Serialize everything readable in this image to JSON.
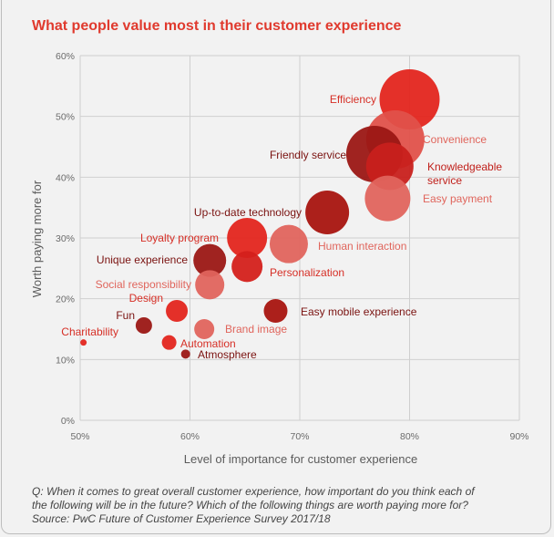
{
  "chart_data": {
    "type": "scatter",
    "title": "What people value most in their customer experience",
    "xlabel": "Level of importance for customer experience",
    "ylabel": "Worth paying more for",
    "xlim": [
      50,
      90
    ],
    "ylim": [
      0,
      60
    ],
    "x_ticks": [
      "50%",
      "60%",
      "70%",
      "80%",
      "90%"
    ],
    "y_ticks": [
      "0%",
      "10%",
      "20%",
      "30%",
      "40%",
      "50%",
      "60%"
    ],
    "grid": true,
    "points": [
      {
        "label": "Efficiency",
        "x": 80.0,
        "y": 52.8,
        "size": 33,
        "color": "#e3251e",
        "label_color": "#d62f26"
      },
      {
        "label": "Convenience",
        "x": 78.7,
        "y": 46.2,
        "size": 32,
        "color": "#e0514a",
        "label_color": "#e0655c"
      },
      {
        "label": "Friendly service",
        "x": 76.8,
        "y": 43.8,
        "size": 31,
        "color": "#9b1714",
        "label_color": "#7a1210"
      },
      {
        "label": "Knowledgeable service",
        "x": 78.2,
        "y": 41.8,
        "size": 26,
        "color": "#c8201c",
        "label_color": "#c0201b"
      },
      {
        "label": "Easy payment",
        "x": 78.0,
        "y": 36.5,
        "size": 25,
        "color": "#e0645d",
        "label_color": "#e0655c"
      },
      {
        "label": "Up-to-date technology",
        "x": 72.5,
        "y": 34.2,
        "size": 24,
        "color": "#a8140f",
        "label_color": "#7a1210"
      },
      {
        "label": "Human interaction",
        "x": 69.0,
        "y": 29.0,
        "size": 21,
        "color": "#e0645d",
        "label_color": "#e0655c"
      },
      {
        "label": "Loyalty program",
        "x": 65.2,
        "y": 30.0,
        "size": 22,
        "color": "#e3251e",
        "label_color": "#d62f26"
      },
      {
        "label": "Unique experience",
        "x": 61.8,
        "y": 26.3,
        "size": 18,
        "color": "#9b1714",
        "label_color": "#7a1210"
      },
      {
        "label": "Personalization",
        "x": 65.2,
        "y": 25.3,
        "size": 17,
        "color": "#d4201b",
        "label_color": "#d62f26"
      },
      {
        "label": "Social responsibility",
        "x": 61.8,
        "y": 22.3,
        "size": 16,
        "color": "#e0645d",
        "label_color": "#e0655c"
      },
      {
        "label": "Design",
        "x": 58.8,
        "y": 18.0,
        "size": 12,
        "color": "#e3251e",
        "label_color": "#d62f26"
      },
      {
        "label": "Easy mobile experience",
        "x": 67.8,
        "y": 18.0,
        "size": 13,
        "color": "#a8140f",
        "label_color": "#7a1210"
      },
      {
        "label": "Fun",
        "x": 55.8,
        "y": 15.6,
        "size": 9,
        "color": "#9b1714",
        "label_color": "#7a1210"
      },
      {
        "label": "Brand image",
        "x": 61.3,
        "y": 15.0,
        "size": 11,
        "color": "#e0645d",
        "label_color": "#e0655c"
      },
      {
        "label": "Charitability",
        "x": 50.3,
        "y": 12.8,
        "size": 3.5,
        "color": "#e3251e",
        "label_color": "#d62f26"
      },
      {
        "label": "Automation",
        "x": 58.1,
        "y": 12.8,
        "size": 8,
        "color": "#e3251e",
        "label_color": "#d62f26"
      },
      {
        "label": "Atmosphere",
        "x": 59.6,
        "y": 10.9,
        "size": 5,
        "color": "#9b1714",
        "label_color": "#7a1210"
      }
    ]
  },
  "footnote": {
    "line1": "Q: When it comes to great overall customer experience, how important do you think each of",
    "line2": "the following will be in the future? Which of the following things are worth paying more for?",
    "line3": "Source: PwC Future of Customer Experience Survey 2017/18"
  },
  "colors": {
    "title": "#e03a2e",
    "grid": "#cfcfcf",
    "background": "#f2f2f2"
  }
}
